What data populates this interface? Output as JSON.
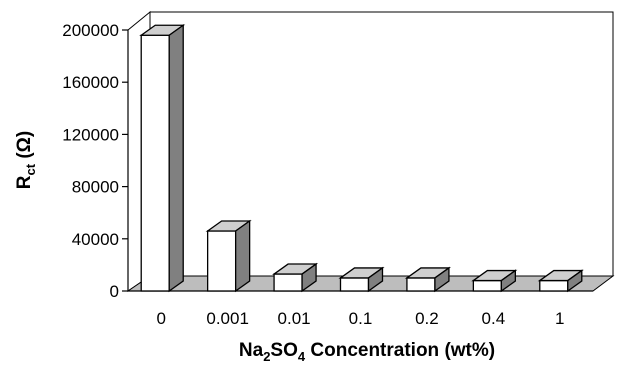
{
  "chart_data": {
    "type": "bar",
    "style": "3d-column",
    "categories": [
      "0",
      "0.001",
      "0.01",
      "0.1",
      "0.2",
      "0.4",
      "1"
    ],
    "values": [
      196000,
      46000,
      13000,
      10000,
      10000,
      8000,
      8000
    ],
    "ylim": [
      0,
      200000
    ],
    "yticks": [
      "0",
      "40000",
      "80000",
      "120000",
      "160000",
      "200000"
    ],
    "ylabel": {
      "main": "R",
      "sub": "ct",
      "rest": " (Ω)"
    },
    "xlabel": {
      "part1": "Na",
      "sub1": "2",
      "part2": "SO",
      "sub2": "4",
      "rest": " Concentration (wt%)"
    },
    "grid": false,
    "legend": "none",
    "colors": {
      "bar_front": "#ffffff",
      "bar_top": "#cfcfcf",
      "bar_side": "#808080",
      "floor": "#bdbdbd",
      "outline": "#000000"
    }
  }
}
